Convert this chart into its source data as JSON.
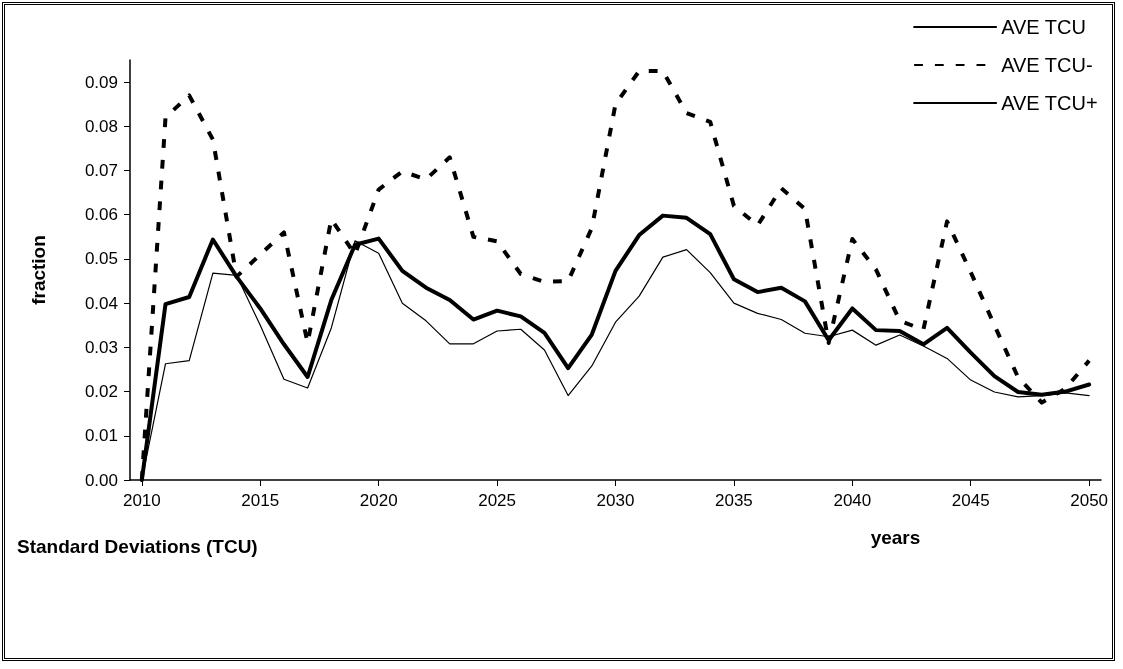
{
  "chart_data": {
    "type": "line",
    "title": "Standard Deviations (TCU)",
    "xlabel": "years",
    "ylabel": "fraction",
    "x": [
      2010,
      2011,
      2012,
      2013,
      2014,
      2015,
      2016,
      2017,
      2018,
      2019,
      2020,
      2021,
      2022,
      2023,
      2024,
      2025,
      2026,
      2027,
      2028,
      2029,
      2030,
      2031,
      2032,
      2033,
      2034,
      2035,
      2036,
      2037,
      2038,
      2039,
      2040,
      2041,
      2042,
      2043,
      2044,
      2045,
      2046,
      2047,
      2048,
      2049,
      2050
    ],
    "series": [
      {
        "name": "AVE TCU",
        "color": "#000000",
        "line_style": "solid",
        "values": [
          0.0,
          0.0398,
          0.0414,
          0.0544,
          0.046,
          0.0388,
          0.0307,
          0.0233,
          0.0407,
          0.0532,
          0.0546,
          0.0473,
          0.0435,
          0.0407,
          0.0363,
          0.0383,
          0.037,
          0.0333,
          0.0253,
          0.0329,
          0.0473,
          0.0554,
          0.0598,
          0.0593,
          0.0556,
          0.0454,
          0.0425,
          0.0435,
          0.0404,
          0.0316,
          0.0388,
          0.0339,
          0.0337,
          0.0307,
          0.0344,
          0.0288,
          0.0235,
          0.0199,
          0.0193,
          0.02,
          0.0216
        ]
      },
      {
        "name": "AVE TCU-",
        "color": "#000000",
        "line_style": "dashed",
        "values": [
          0.0,
          0.082,
          0.087,
          0.077,
          0.046,
          0.051,
          0.056,
          0.031,
          0.059,
          0.051,
          0.0657,
          0.0698,
          0.068,
          0.073,
          0.055,
          0.054,
          0.0466,
          0.0448,
          0.045,
          0.057,
          0.085,
          0.0925,
          0.0925,
          0.083,
          0.081,
          0.062,
          0.0576,
          0.066,
          0.0613,
          0.031,
          0.0545,
          0.0476,
          0.036,
          0.034,
          0.0585,
          0.047,
          0.035,
          0.0232,
          0.0175,
          0.0207,
          0.027
        ]
      },
      {
        "name": "AVE TCU+",
        "color": "#000000",
        "line_style": "solid",
        "values": [
          0.0,
          0.0263,
          0.027,
          0.0468,
          0.0463,
          0.035,
          0.0228,
          0.0208,
          0.0344,
          0.0541,
          0.0513,
          0.04,
          0.036,
          0.0308,
          0.0308,
          0.0337,
          0.0341,
          0.0294,
          0.0191,
          0.0258,
          0.0357,
          0.0416,
          0.0504,
          0.0521,
          0.0469,
          0.04,
          0.0377,
          0.0363,
          0.0332,
          0.0324,
          0.0339,
          0.0305,
          0.0328,
          0.0303,
          0.0275,
          0.0226,
          0.0199,
          0.0188,
          0.0191,
          0.0197,
          0.0191
        ]
      }
    ],
    "xlim": [
      2009.5,
      2050.5
    ],
    "xticks": [
      2010,
      2015,
      2020,
      2025,
      2030,
      2035,
      2040,
      2045,
      2050
    ],
    "ylim": [
      0,
      0.095
    ],
    "yticks": [
      {
        "value": 0,
        "label": "0.00"
      },
      {
        "value": 0.01,
        "label": "0.01"
      },
      {
        "value": 0.02,
        "label": "0.02"
      },
      {
        "value": 0.03,
        "label": "0.03"
      },
      {
        "value": 0.04,
        "label": "0.04"
      },
      {
        "value": 0.05,
        "label": "0.05"
      },
      {
        "value": 0.06,
        "label": "0.06"
      },
      {
        "value": 0.07,
        "label": "0.07"
      },
      {
        "value": 0.08,
        "label": "0.08"
      },
      {
        "value": 0.09,
        "label": "0.09"
      }
    ],
    "grid": false,
    "legend": "top right",
    "marker": "none"
  }
}
